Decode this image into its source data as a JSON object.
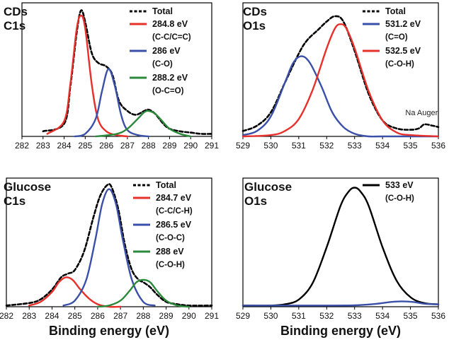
{
  "chart_data": [
    {
      "id": "cds-c1s",
      "type": "line",
      "title_lines": [
        "CDs",
        "C1s"
      ],
      "xlabel": "",
      "ylabel": "",
      "xlim": [
        282,
        291
      ],
      "xticks": [
        282,
        283,
        284,
        285,
        286,
        287,
        288,
        289,
        290,
        291
      ],
      "grid": false,
      "legend": "top-right",
      "series": [
        {
          "name": "Total",
          "sub": "",
          "color": "#000000",
          "dashed": true,
          "x": [
            283.0,
            284.0,
            284.3,
            284.6,
            284.8,
            285.0,
            285.3,
            285.6,
            286.0,
            286.3,
            286.6,
            287.0,
            287.4,
            287.8,
            288.0,
            288.3,
            288.7,
            289.0,
            289.5,
            290.0,
            290.5,
            291.0
          ],
          "values": [
            0.04,
            0.1,
            0.4,
            0.82,
            0.99,
            0.9,
            0.66,
            0.58,
            0.55,
            0.48,
            0.28,
            0.2,
            0.17,
            0.2,
            0.21,
            0.18,
            0.1,
            0.06,
            0.04,
            0.03,
            0.02,
            0.02
          ]
        },
        {
          "name": "284.8 eV",
          "sub": "(C-C/C=C)",
          "color": "#e8302a",
          "dashed": false,
          "x": [
            283.2,
            284.0,
            284.3,
            284.6,
            284.8,
            285.0,
            285.3,
            285.6,
            286.0,
            286.5,
            287.0
          ],
          "values": [
            0.02,
            0.12,
            0.42,
            0.85,
            0.95,
            0.85,
            0.42,
            0.14,
            0.04,
            0.01,
            0.0
          ]
        },
        {
          "name": "286 eV",
          "sub": "(C-O)",
          "color": "#3a4fa8",
          "dashed": false,
          "x": [
            284.5,
            285.0,
            285.5,
            285.8,
            286.1,
            286.4,
            286.7,
            287.0,
            287.5,
            288.0
          ],
          "values": [
            0.0,
            0.02,
            0.14,
            0.36,
            0.53,
            0.4,
            0.17,
            0.05,
            0.01,
            0.0
          ]
        },
        {
          "name": "288.2 eV",
          "sub": "(O-C=O)",
          "color": "#2a8a3a",
          "dashed": false,
          "x": [
            285.5,
            286.5,
            287.0,
            287.5,
            287.8,
            288.0,
            288.3,
            288.6,
            289.0,
            289.5,
            290.0
          ],
          "values": [
            0.0,
            0.02,
            0.06,
            0.14,
            0.19,
            0.2,
            0.18,
            0.13,
            0.06,
            0.02,
            0.0
          ]
        }
      ],
      "annotations": []
    },
    {
      "id": "cds-o1s",
      "type": "line",
      "title_lines": [
        "CDs",
        "O1s"
      ],
      "xlabel": "",
      "ylabel": "",
      "xlim": [
        529,
        536
      ],
      "xticks": [
        529,
        530,
        531,
        532,
        533,
        534,
        535,
        536
      ],
      "grid": false,
      "legend": "top-right",
      "series": [
        {
          "name": "Total",
          "sub": "",
          "color": "#000000",
          "dashed": true,
          "x": [
            529.0,
            529.5,
            530.0,
            530.5,
            531.0,
            531.3,
            531.7,
            532.0,
            532.3,
            532.6,
            533.0,
            533.5,
            534.0,
            534.5,
            535.0,
            535.3,
            535.5,
            535.8,
            536.0
          ],
          "values": [
            0.04,
            0.08,
            0.18,
            0.4,
            0.62,
            0.72,
            0.8,
            0.86,
            0.9,
            0.86,
            0.64,
            0.32,
            0.12,
            0.06,
            0.05,
            0.06,
            0.09,
            0.08,
            0.07
          ]
        },
        {
          "name": "531.2 eV",
          "sub": "(C=O)",
          "color": "#3a4fa8",
          "dashed": false,
          "x": [
            529.0,
            529.5,
            530.0,
            530.5,
            530.8,
            531.1,
            531.4,
            531.8,
            532.2,
            532.6,
            533.0,
            533.5,
            534.0,
            536.0
          ],
          "values": [
            0.01,
            0.04,
            0.15,
            0.4,
            0.55,
            0.6,
            0.55,
            0.38,
            0.18,
            0.07,
            0.02,
            0.0,
            0.0,
            0.0
          ]
        },
        {
          "name": "532.5 eV",
          "sub": "(C-O-H)",
          "color": "#e8302a",
          "dashed": false,
          "x": [
            529.0,
            530.0,
            530.5,
            531.0,
            531.5,
            532.0,
            532.3,
            532.5,
            532.7,
            533.0,
            533.5,
            534.0,
            534.5,
            535.0,
            536.0
          ],
          "values": [
            0.0,
            0.01,
            0.04,
            0.13,
            0.35,
            0.66,
            0.81,
            0.84,
            0.81,
            0.66,
            0.34,
            0.12,
            0.03,
            0.01,
            0.0
          ]
        }
      ],
      "annotations": [
        {
          "text": "Na Auger",
          "x": 535.4,
          "y": 0.16
        }
      ]
    },
    {
      "id": "glucose-c1s",
      "type": "line",
      "title_lines": [
        "Glucose",
        "C1s"
      ],
      "xlabel": "Binding energy (eV)",
      "ylabel": "",
      "xlim": [
        282,
        291
      ],
      "xticks": [
        282,
        283,
        284,
        285,
        286,
        287,
        288,
        289,
        290,
        291
      ],
      "grid": false,
      "legend": "top-right",
      "series": [
        {
          "name": "Total",
          "sub": "",
          "color": "#000000",
          "dashed": true,
          "x": [
            282.0,
            283.0,
            283.5,
            284.0,
            284.4,
            284.7,
            285.0,
            285.4,
            285.8,
            286.1,
            286.4,
            286.6,
            286.9,
            287.2,
            287.5,
            287.8,
            288.0,
            288.3,
            288.6,
            289.0,
            289.5,
            290.0,
            291.0
          ],
          "values": [
            0.01,
            0.03,
            0.06,
            0.14,
            0.24,
            0.27,
            0.3,
            0.45,
            0.72,
            0.9,
            0.99,
            0.98,
            0.8,
            0.5,
            0.3,
            0.22,
            0.2,
            0.16,
            0.1,
            0.04,
            0.02,
            0.01,
            0.01
          ]
        },
        {
          "name": "284.7 eV",
          "sub": "(C-C/C-H)",
          "color": "#e8302a",
          "dashed": false,
          "x": [
            283.0,
            283.5,
            284.0,
            284.3,
            284.6,
            284.9,
            285.2,
            285.6,
            286.0,
            286.5,
            287.0
          ],
          "values": [
            0.01,
            0.04,
            0.12,
            0.2,
            0.24,
            0.22,
            0.15,
            0.07,
            0.02,
            0.0,
            0.0
          ]
        },
        {
          "name": "286.5 eV",
          "sub": "(C-O-C)",
          "color": "#3a4fa8",
          "dashed": false,
          "x": [
            284.5,
            285.0,
            285.5,
            285.9,
            286.2,
            286.5,
            286.8,
            287.1,
            287.5,
            288.0,
            288.5
          ],
          "values": [
            0.01,
            0.05,
            0.22,
            0.55,
            0.84,
            0.96,
            0.84,
            0.55,
            0.22,
            0.04,
            0.01
          ]
        },
        {
          "name": "288 eV",
          "sub": "(C-O-H)",
          "color": "#2a8a3a",
          "dashed": false,
          "x": [
            286.0,
            286.5,
            287.0,
            287.4,
            287.7,
            288.0,
            288.3,
            288.6,
            289.0,
            289.5,
            290.0
          ],
          "values": [
            0.0,
            0.01,
            0.05,
            0.13,
            0.2,
            0.22,
            0.2,
            0.13,
            0.05,
            0.01,
            0.0
          ]
        }
      ],
      "annotations": []
    },
    {
      "id": "glucose-o1s",
      "type": "line",
      "title_lines": [
        "Glucose",
        "O1s"
      ],
      "xlabel": "Binding energy (eV)",
      "ylabel": "",
      "xlim": [
        529,
        536
      ],
      "xticks": [
        529,
        530,
        531,
        532,
        533,
        534,
        535,
        536
      ],
      "grid": false,
      "legend": "top-right",
      "series": [
        {
          "name": "533 eV",
          "sub": "(C-O-H)",
          "color": "#000000",
          "dashed": false,
          "x": [
            529.0,
            530.0,
            530.5,
            531.0,
            531.5,
            532.0,
            532.5,
            532.8,
            533.0,
            533.2,
            533.5,
            534.0,
            534.5,
            535.0,
            535.5,
            536.0
          ],
          "values": [
            0.01,
            0.01,
            0.02,
            0.06,
            0.2,
            0.5,
            0.85,
            0.97,
            1.0,
            0.97,
            0.85,
            0.5,
            0.22,
            0.08,
            0.03,
            0.02
          ]
        },
        {
          "name": "",
          "sub": "",
          "color": "#3a4fa8",
          "dashed": false,
          "x": [
            529.0,
            530.0,
            531.0,
            532.0,
            533.0,
            533.8,
            534.3,
            534.7,
            535.1,
            535.5,
            536.0
          ],
          "values": [
            0.01,
            0.01,
            0.01,
            0.01,
            0.012,
            0.025,
            0.04,
            0.045,
            0.04,
            0.025,
            0.02
          ]
        }
      ],
      "annotations": []
    }
  ]
}
